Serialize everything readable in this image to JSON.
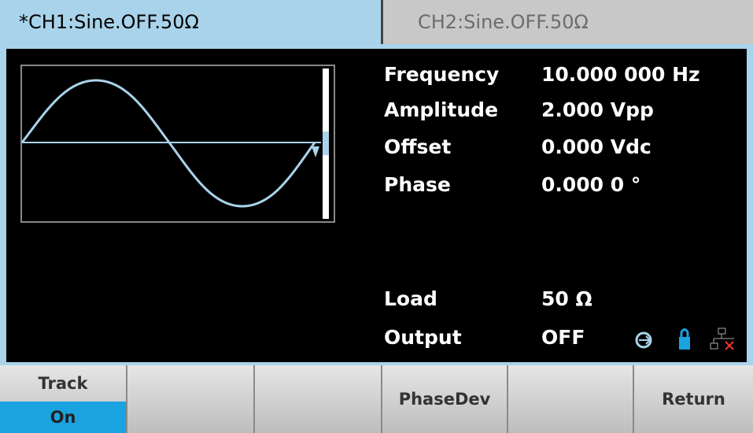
{
  "tabs": {
    "ch1": "*CH1:Sine.OFF.50Ω",
    "ch2": "CH2:Sine.OFF.50Ω"
  },
  "params": [
    {
      "label": "Frequency",
      "value": "10.000 000 Hz"
    },
    {
      "label": "Amplitude",
      "value": "2.000 Vpp"
    },
    {
      "label": "Offset",
      "value": "0.000 Vdc"
    },
    {
      "label": "Phase",
      "value": "0.000 0 °"
    }
  ],
  "load": {
    "label": "Load",
    "value": "50 Ω"
  },
  "output": {
    "label": "Output",
    "value": "OFF"
  },
  "softkeys": {
    "track": {
      "label": "Track",
      "state": "On"
    },
    "phasedev": "PhaseDev",
    "return": "Return"
  }
}
